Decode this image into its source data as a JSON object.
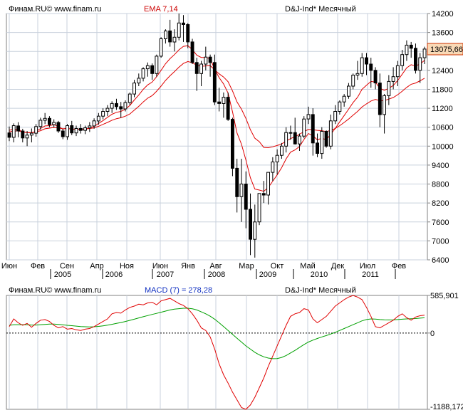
{
  "chart_data": [
    {
      "type": "candlestick",
      "source_label": "Финам.RU© www.finam.ru",
      "indicator_label": "EMA 7,14",
      "instrument_label": "D&J-Ind* Месячный",
      "last_price_label": "13075,66",
      "ylim": [
        6400,
        14200
      ],
      "yticks": [
        "14200",
        "13600",
        "13000",
        "12400",
        "11800",
        "11200",
        "10600",
        "10000",
        "9400",
        "8800",
        "8200",
        "7600",
        "7000",
        "6400"
      ],
      "month_labels": [
        "Июн",
        "Фев",
        "Сен",
        "Апр",
        "Ноя",
        "Июн",
        "Янв",
        "Авг",
        "Мар",
        "Окт",
        "Май",
        "Дек",
        "Июл",
        "Фев"
      ],
      "year_labels": [
        "2005",
        "2006",
        "2007",
        "2008",
        "2009",
        "2010",
        "2011"
      ],
      "colors": {
        "up": "#ffffff",
        "down": "#000000",
        "ema": "#e00000",
        "grid": "#c8d0dc",
        "frame": "#808080",
        "background": "#ffffff",
        "highlight": "#f9d9b6"
      },
      "candles": [
        {
          "o": 10420,
          "h": 10620,
          "l": 10160,
          "c": 10280
        },
        {
          "o": 10280,
          "h": 10720,
          "l": 10120,
          "c": 10650
        },
        {
          "o": 10640,
          "h": 10760,
          "l": 10280,
          "c": 10480
        },
        {
          "o": 10480,
          "h": 10550,
          "l": 10120,
          "c": 10260
        },
        {
          "o": 10260,
          "h": 10480,
          "l": 10000,
          "c": 10350
        },
        {
          "o": 10350,
          "h": 10560,
          "l": 10120,
          "c": 10410
        },
        {
          "o": 10410,
          "h": 10700,
          "l": 10300,
          "c": 10620
        },
        {
          "o": 10620,
          "h": 10900,
          "l": 10520,
          "c": 10820
        },
        {
          "o": 10820,
          "h": 11050,
          "l": 10700,
          "c": 10880
        },
        {
          "o": 10880,
          "h": 10950,
          "l": 10600,
          "c": 10680
        },
        {
          "o": 10680,
          "h": 10850,
          "l": 10600,
          "c": 10750
        },
        {
          "o": 10750,
          "h": 10800,
          "l": 10420,
          "c": 10480
        },
        {
          "o": 10480,
          "h": 10550,
          "l": 10220,
          "c": 10300
        },
        {
          "o": 10300,
          "h": 10700,
          "l": 10200,
          "c": 10650
        },
        {
          "o": 10650,
          "h": 10800,
          "l": 10350,
          "c": 10420
        },
        {
          "o": 10420,
          "h": 10650,
          "l": 10320,
          "c": 10560
        },
        {
          "o": 10560,
          "h": 10700,
          "l": 10400,
          "c": 10500
        },
        {
          "o": 10500,
          "h": 10650,
          "l": 10380,
          "c": 10580
        },
        {
          "o": 10580,
          "h": 10760,
          "l": 10450,
          "c": 10640
        },
        {
          "o": 10640,
          "h": 10880,
          "l": 10550,
          "c": 10800
        },
        {
          "o": 10800,
          "h": 11050,
          "l": 10680,
          "c": 10950
        },
        {
          "o": 10950,
          "h": 11200,
          "l": 10850,
          "c": 11100
        },
        {
          "o": 11100,
          "h": 11300,
          "l": 10950,
          "c": 11200
        },
        {
          "o": 11200,
          "h": 11420,
          "l": 11050,
          "c": 11350
        },
        {
          "o": 11350,
          "h": 11500,
          "l": 11150,
          "c": 11250
        },
        {
          "o": 11250,
          "h": 11400,
          "l": 10900,
          "c": 11180
        },
        {
          "o": 11180,
          "h": 11450,
          "l": 11100,
          "c": 11380
        },
        {
          "o": 11380,
          "h": 11700,
          "l": 11300,
          "c": 11650
        },
        {
          "o": 11650,
          "h": 12100,
          "l": 11550,
          "c": 12000
        },
        {
          "o": 12000,
          "h": 12300,
          "l": 11900,
          "c": 12150
        },
        {
          "o": 12150,
          "h": 12500,
          "l": 12050,
          "c": 12450
        },
        {
          "o": 12450,
          "h": 12650,
          "l": 12200,
          "c": 12550
        },
        {
          "o": 12550,
          "h": 12620,
          "l": 12100,
          "c": 12300
        },
        {
          "o": 12300,
          "h": 12900,
          "l": 12200,
          "c": 12850
        },
        {
          "o": 12850,
          "h": 13450,
          "l": 12800,
          "c": 13400
        },
        {
          "o": 13400,
          "h": 13700,
          "l": 13250,
          "c": 13650
        },
        {
          "o": 13650,
          "h": 14000,
          "l": 13150,
          "c": 13300
        },
        {
          "o": 13300,
          "h": 13700,
          "l": 13000,
          "c": 13450
        },
        {
          "o": 13450,
          "h": 14200,
          "l": 13350,
          "c": 13900
        },
        {
          "o": 13900,
          "h": 14150,
          "l": 13300,
          "c": 13850
        },
        {
          "o": 13850,
          "h": 13900,
          "l": 13100,
          "c": 13300
        },
        {
          "o": 13300,
          "h": 13400,
          "l": 12600,
          "c": 12650
        },
        {
          "o": 12650,
          "h": 12800,
          "l": 11750,
          "c": 12300
        },
        {
          "o": 12300,
          "h": 12700,
          "l": 11900,
          "c": 12600
        },
        {
          "o": 12600,
          "h": 13150,
          "l": 12400,
          "c": 12820
        },
        {
          "o": 12820,
          "h": 12900,
          "l": 12200,
          "c": 12650
        },
        {
          "o": 12650,
          "h": 12900,
          "l": 11300,
          "c": 11400
        },
        {
          "o": 11400,
          "h": 11850,
          "l": 11100,
          "c": 11350
        },
        {
          "o": 11350,
          "h": 11700,
          "l": 10900,
          "c": 11550
        },
        {
          "o": 11550,
          "h": 11700,
          "l": 10800,
          "c": 10850
        },
        {
          "o": 10850,
          "h": 10900,
          "l": 9050,
          "c": 9300
        },
        {
          "o": 9300,
          "h": 9600,
          "l": 7900,
          "c": 8400
        },
        {
          "o": 8400,
          "h": 9600,
          "l": 7600,
          "c": 8800
        },
        {
          "o": 8800,
          "h": 9200,
          "l": 7400,
          "c": 8000
        },
        {
          "o": 8000,
          "h": 8500,
          "l": 6550,
          "c": 7050
        },
        {
          "o": 7050,
          "h": 8150,
          "l": 6470,
          "c": 7600
        },
        {
          "o": 7600,
          "h": 8500,
          "l": 7500,
          "c": 8500
        },
        {
          "o": 8500,
          "h": 8900,
          "l": 8200,
          "c": 8450
        },
        {
          "o": 8450,
          "h": 9150,
          "l": 8150,
          "c": 9170
        },
        {
          "o": 9170,
          "h": 9650,
          "l": 8900,
          "c": 9500
        },
        {
          "o": 9500,
          "h": 9900,
          "l": 9100,
          "c": 9710
        },
        {
          "o": 9710,
          "h": 10100,
          "l": 9600,
          "c": 10000
        },
        {
          "o": 10000,
          "h": 10600,
          "l": 9800,
          "c": 10430
        },
        {
          "o": 10430,
          "h": 10650,
          "l": 10200,
          "c": 10430
        },
        {
          "o": 10430,
          "h": 10900,
          "l": 10050,
          "c": 10070
        },
        {
          "o": 10070,
          "h": 10400,
          "l": 9850,
          "c": 10320
        },
        {
          "o": 10320,
          "h": 10950,
          "l": 10250,
          "c": 10860
        },
        {
          "o": 10860,
          "h": 11250,
          "l": 10700,
          "c": 11000
        },
        {
          "o": 11000,
          "h": 11200,
          "l": 9700,
          "c": 10100
        },
        {
          "o": 10100,
          "h": 10400,
          "l": 9650,
          "c": 9770
        },
        {
          "o": 9770,
          "h": 10600,
          "l": 9600,
          "c": 10470
        },
        {
          "o": 10470,
          "h": 10500,
          "l": 9950,
          "c": 10000
        },
        {
          "o": 10000,
          "h": 11000,
          "l": 9900,
          "c": 10800
        },
        {
          "o": 10800,
          "h": 11300,
          "l": 10700,
          "c": 11100
        },
        {
          "o": 11100,
          "h": 11450,
          "l": 11000,
          "c": 11400
        },
        {
          "o": 11400,
          "h": 11650,
          "l": 11250,
          "c": 11580
        },
        {
          "o": 11580,
          "h": 12000,
          "l": 11500,
          "c": 11900
        },
        {
          "o": 11900,
          "h": 12300,
          "l": 11800,
          "c": 12250
        },
        {
          "o": 12250,
          "h": 12700,
          "l": 12100,
          "c": 12300
        },
        {
          "o": 12300,
          "h": 12950,
          "l": 12200,
          "c": 12800
        },
        {
          "o": 12800,
          "h": 12950,
          "l": 12250,
          "c": 12600
        },
        {
          "o": 12600,
          "h": 12800,
          "l": 11850,
          "c": 12400
        },
        {
          "o": 12400,
          "h": 12500,
          "l": 11800,
          "c": 12000
        },
        {
          "o": 12000,
          "h": 12300,
          "l": 10600,
          "c": 11000
        },
        {
          "o": 11000,
          "h": 11650,
          "l": 10400,
          "c": 11600
        },
        {
          "o": 11600,
          "h": 12250,
          "l": 11300,
          "c": 12050
        },
        {
          "o": 12050,
          "h": 12500,
          "l": 11800,
          "c": 12200
        },
        {
          "o": 12200,
          "h": 12700,
          "l": 11900,
          "c": 12550
        },
        {
          "o": 12550,
          "h": 13050,
          "l": 12400,
          "c": 12900
        },
        {
          "o": 12900,
          "h": 13350,
          "l": 12700,
          "c": 13200
        },
        {
          "o": 13200,
          "h": 13300,
          "l": 12800,
          "c": 13100
        },
        {
          "o": 13100,
          "h": 13250,
          "l": 12300,
          "c": 12400
        },
        {
          "o": 12400,
          "h": 12950,
          "l": 12000,
          "c": 12800
        },
        {
          "o": 12800,
          "h": 13150,
          "l": 12600,
          "c": 13075
        }
      ],
      "ema_fast": [
        10500,
        10540,
        10530,
        10460,
        10430,
        10420,
        10470,
        10560,
        10640,
        10650,
        10680,
        10620,
        10540,
        10570,
        10530,
        10540,
        10530,
        10540,
        10570,
        10630,
        10720,
        10810,
        10910,
        11010,
        11070,
        11100,
        11170,
        11290,
        11460,
        11620,
        11800,
        11940,
        12030,
        12200,
        12400,
        12610,
        12770,
        12900,
        13050,
        13160,
        13180,
        13060,
        12880,
        12810,
        12810,
        12770,
        12430,
        12170,
        11970,
        11680,
        11090,
        10420,
        10060,
        9560,
        9000,
        8640,
        8610,
        8570,
        8690,
        8890,
        9090,
        9320,
        9600,
        9810,
        9880,
        9990,
        10210,
        10400,
        10330,
        10200,
        10250,
        10200,
        10380,
        10560,
        10770,
        10970,
        11170,
        11380,
        11550,
        11800,
        11930,
        12050,
        12030,
        11830,
        11770,
        11830,
        11920,
        12080,
        12280,
        12480,
        12580,
        12540,
        12600,
        12720
      ],
      "ema_slow": [
        10450,
        10480,
        10480,
        10450,
        10430,
        10430,
        10450,
        10490,
        10550,
        10570,
        10590,
        10580,
        10550,
        10560,
        10540,
        10540,
        10540,
        10540,
        10560,
        10580,
        10630,
        10690,
        10750,
        10820,
        10870,
        10900,
        10950,
        11020,
        11140,
        11260,
        11400,
        11520,
        11600,
        11740,
        11900,
        12080,
        12230,
        12360,
        12500,
        12620,
        12680,
        12640,
        12560,
        12530,
        12540,
        12550,
        12420,
        12290,
        12190,
        12040,
        11750,
        11400,
        11170,
        10880,
        10520,
        10250,
        10140,
        9960,
        9950,
        9980,
        10020,
        10070,
        10160,
        10240,
        10300,
        10380,
        10460,
        10530,
        10520,
        10500,
        10490,
        10460,
        10500,
        10560,
        10650,
        10750,
        10860,
        10980,
        11100,
        11240,
        11340,
        11430,
        11480,
        11440,
        11440,
        11490,
        11540,
        11630,
        11740,
        11860,
        11960,
        12000,
        12070,
        12150
      ]
    },
    {
      "type": "line",
      "source_label": "Финам.RU© www.finam.ru",
      "indicator_label": "MACD (7) = 278,28",
      "instrument_label": "D&J-Ind* Месячный",
      "ylim": [
        -1188.172,
        585.901
      ],
      "yticks": [
        "585,901",
        "0",
        "-1188,172"
      ],
      "colors": {
        "macd": "#e00000",
        "signal": "#00a000",
        "zero": "#000000"
      },
      "series": [
        {
          "values": [
            100,
            220,
            160,
            120,
            150,
            90,
            150,
            200,
            210,
            180,
            120,
            80,
            100,
            60,
            70,
            50,
            40,
            60,
            70,
            100,
            140,
            180,
            220,
            300,
            320,
            310,
            360,
            400,
            420,
            450,
            440,
            470,
            480,
            440,
            500,
            520,
            540,
            500,
            460,
            430,
            380,
            300,
            200,
            80,
            40,
            -60,
            -250,
            -480,
            -650,
            -780,
            -920,
            -1040,
            -1160,
            -1188,
            -1120,
            -1000,
            -850,
            -700,
            -520,
            -360,
            -200,
            -40,
            120,
            260,
            300,
            320,
            380,
            360,
            220,
            160,
            210,
            260,
            340,
            420,
            470,
            520,
            560,
            585,
            560,
            520,
            400,
            260,
            100,
            80,
            120,
            160,
            200,
            260,
            300,
            240,
            200,
            250,
            270,
            278
          ]
        },
        {
          "values": [
            120,
            130,
            130,
            130,
            130,
            125,
            125,
            130,
            135,
            140,
            140,
            135,
            128,
            120,
            115,
            108,
            100,
            98,
            96,
            98,
            104,
            112,
            122,
            136,
            150,
            164,
            180,
            198,
            216,
            236,
            254,
            272,
            290,
            306,
            324,
            342,
            360,
            372,
            380,
            386,
            386,
            378,
            360,
            330,
            300,
            262,
            216,
            160,
            100,
            40,
            -20,
            -80,
            -140,
            -200,
            -250,
            -300,
            -340,
            -370,
            -390,
            -400,
            -398,
            -380,
            -350,
            -310,
            -270,
            -225,
            -180,
            -140,
            -110,
            -85,
            -60,
            -40,
            -15,
            10,
            40,
            70,
            100,
            130,
            160,
            190,
            210,
            220,
            218,
            210,
            206,
            205,
            206,
            210,
            216,
            220,
            222,
            226,
            232,
            238
          ]
        }
      ]
    }
  ]
}
